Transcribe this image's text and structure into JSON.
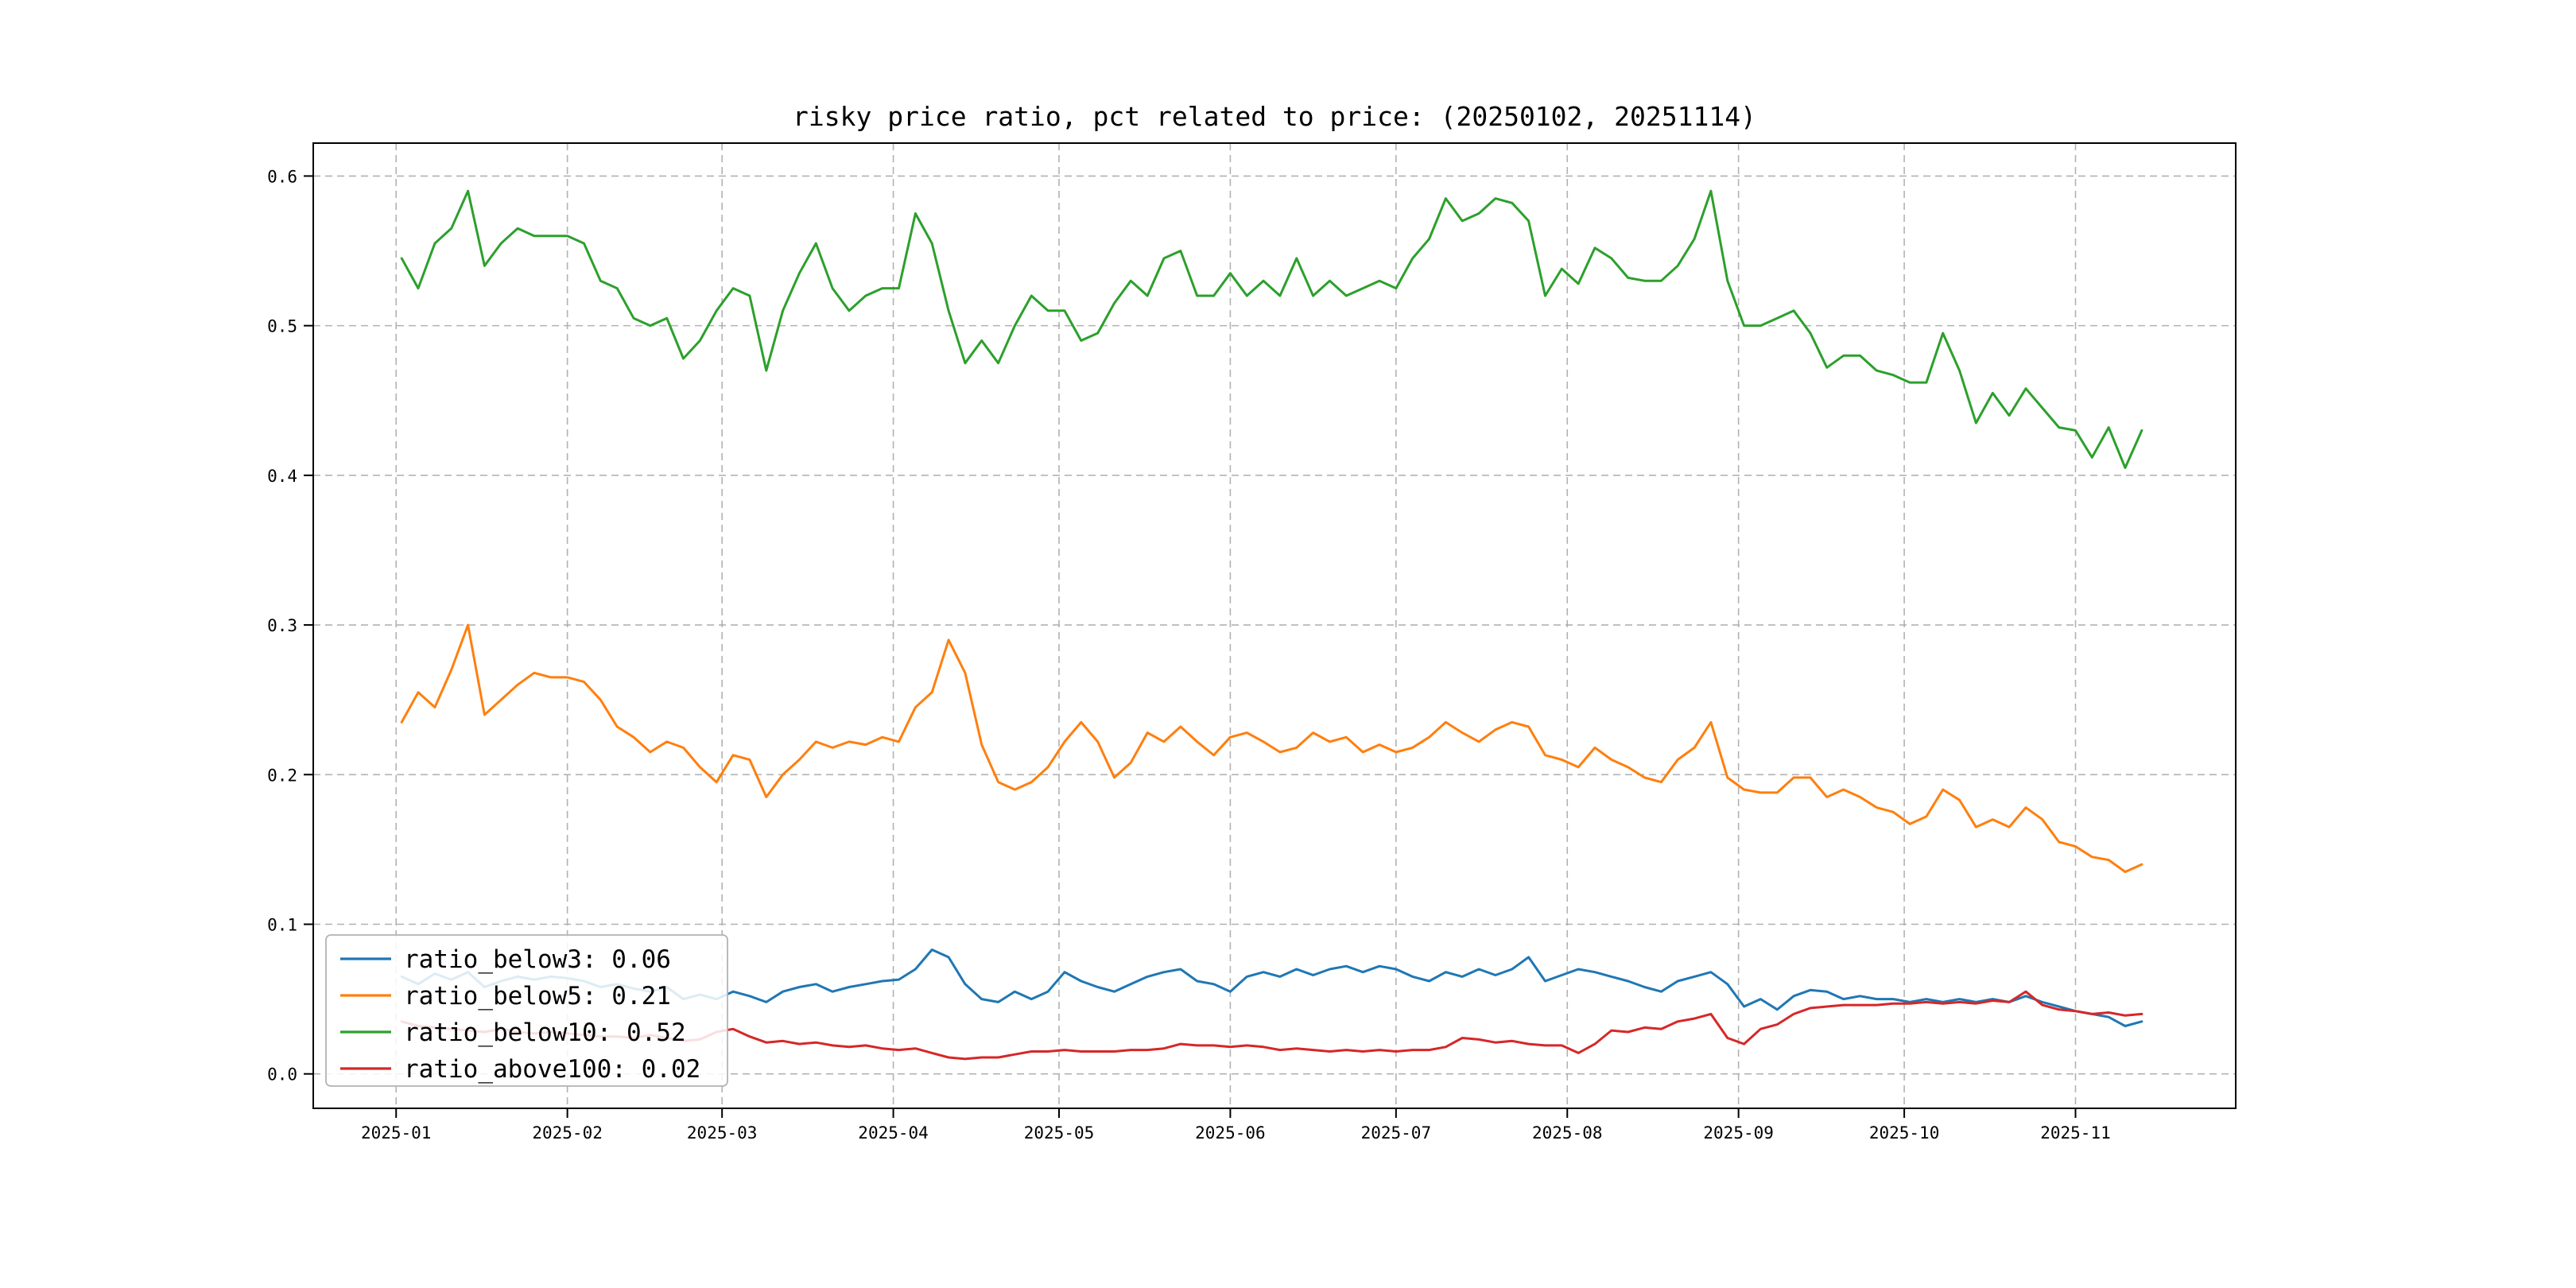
{
  "figure": {
    "background": "#ffffff",
    "axis_color": "#000000",
    "grid_color": "#aaaaaa"
  },
  "chart_data": {
    "type": "line",
    "title": "risky price ratio, pct related to price: (20250102, 20251114)",
    "date_range": [
      "20250102",
      "20251114"
    ],
    "grid": true,
    "legend_position": "lower left",
    "x_axis": {
      "tick_labels": [
        "2025-01",
        "2025-02",
        "2025-03",
        "2025-04",
        "2025-05",
        "2025-06",
        "2025-07",
        "2025-08",
        "2025-09",
        "2025-10",
        "2025-11"
      ],
      "tick_day_offsets": [
        -1,
        30,
        58,
        89,
        119,
        150,
        180,
        211,
        242,
        272,
        303
      ],
      "xlim_days": [
        -16,
        332
      ]
    },
    "y_axis": {
      "tick_labels": [
        "0.0",
        "0.1",
        "0.2",
        "0.3",
        "0.4",
        "0.5",
        "0.6"
      ],
      "ticks": [
        0.0,
        0.1,
        0.2,
        0.3,
        0.4,
        0.5,
        0.6
      ],
      "ylim": [
        -0.023,
        0.622
      ]
    },
    "x_day_offsets": [
      0,
      3,
      6,
      9,
      12,
      15,
      18,
      21,
      24,
      27,
      30,
      33,
      36,
      39,
      42,
      45,
      48,
      51,
      54,
      57,
      60,
      63,
      66,
      69,
      72,
      75,
      78,
      81,
      84,
      87,
      90,
      93,
      96,
      99,
      102,
      105,
      108,
      111,
      114,
      117,
      120,
      123,
      126,
      129,
      132,
      135,
      138,
      141,
      144,
      147,
      150,
      153,
      156,
      159,
      162,
      165,
      168,
      171,
      174,
      177,
      180,
      183,
      186,
      189,
      192,
      195,
      198,
      201,
      204,
      207,
      210,
      213,
      216,
      219,
      222,
      225,
      228,
      231,
      234,
      237,
      240,
      243,
      246,
      249,
      252,
      255,
      258,
      261,
      264,
      267,
      270,
      273,
      276,
      279,
      282,
      285,
      288,
      291,
      294,
      297,
      300,
      303,
      306,
      309,
      312,
      315
    ],
    "series": [
      {
        "name": "ratio_below3",
        "label": "ratio_below3: 0.06",
        "color": "#1f77b4",
        "values": [
          0.065,
          0.06,
          0.067,
          0.063,
          0.068,
          0.058,
          0.062,
          0.065,
          0.063,
          0.065,
          0.064,
          0.062,
          0.058,
          0.06,
          0.057,
          0.055,
          0.058,
          0.05,
          0.053,
          0.05,
          0.055,
          0.052,
          0.048,
          0.055,
          0.058,
          0.06,
          0.055,
          0.058,
          0.06,
          0.062,
          0.063,
          0.07,
          0.083,
          0.078,
          0.06,
          0.05,
          0.048,
          0.055,
          0.05,
          0.055,
          0.068,
          0.062,
          0.058,
          0.055,
          0.06,
          0.065,
          0.068,
          0.07,
          0.062,
          0.06,
          0.055,
          0.065,
          0.068,
          0.065,
          0.07,
          0.066,
          0.07,
          0.072,
          0.068,
          0.072,
          0.07,
          0.065,
          0.062,
          0.068,
          0.065,
          0.07,
          0.066,
          0.07,
          0.078,
          0.062,
          0.066,
          0.07,
          0.068,
          0.065,
          0.062,
          0.058,
          0.055,
          0.062,
          0.065,
          0.068,
          0.06,
          0.045,
          0.05,
          0.043,
          0.052,
          0.056,
          0.055,
          0.05,
          0.052,
          0.05,
          0.05,
          0.048,
          0.05,
          0.048,
          0.05,
          0.048,
          0.05,
          0.048,
          0.052,
          0.048,
          0.045,
          0.042,
          0.04,
          0.038,
          0.032,
          0.035
        ]
      },
      {
        "name": "ratio_below5",
        "label": "ratio_below5: 0.21",
        "color": "#ff7f0e",
        "values": [
          0.235,
          0.255,
          0.245,
          0.27,
          0.3,
          0.24,
          0.25,
          0.26,
          0.268,
          0.265,
          0.265,
          0.262,
          0.25,
          0.232,
          0.225,
          0.215,
          0.222,
          0.218,
          0.205,
          0.195,
          0.213,
          0.21,
          0.185,
          0.2,
          0.21,
          0.222,
          0.218,
          0.222,
          0.22,
          0.225,
          0.222,
          0.245,
          0.255,
          0.29,
          0.268,
          0.22,
          0.195,
          0.19,
          0.195,
          0.205,
          0.222,
          0.235,
          0.222,
          0.198,
          0.208,
          0.228,
          0.222,
          0.232,
          0.222,
          0.213,
          0.225,
          0.228,
          0.222,
          0.215,
          0.218,
          0.228,
          0.222,
          0.225,
          0.215,
          0.22,
          0.215,
          0.218,
          0.225,
          0.235,
          0.228,
          0.222,
          0.23,
          0.235,
          0.232,
          0.213,
          0.21,
          0.205,
          0.218,
          0.21,
          0.205,
          0.198,
          0.195,
          0.21,
          0.218,
          0.235,
          0.198,
          0.19,
          0.188,
          0.188,
          0.198,
          0.198,
          0.185,
          0.19,
          0.185,
          0.178,
          0.175,
          0.167,
          0.172,
          0.19,
          0.183,
          0.165,
          0.17,
          0.165,
          0.178,
          0.17,
          0.155,
          0.152,
          0.145,
          0.143,
          0.135,
          0.14
        ]
      },
      {
        "name": "ratio_below10",
        "label": "ratio_below10: 0.52",
        "color": "#2ca02c",
        "values": [
          0.545,
          0.525,
          0.555,
          0.565,
          0.59,
          0.54,
          0.555,
          0.565,
          0.56,
          0.56,
          0.56,
          0.555,
          0.53,
          0.525,
          0.505,
          0.5,
          0.505,
          0.478,
          0.49,
          0.51,
          0.525,
          0.52,
          0.47,
          0.51,
          0.535,
          0.555,
          0.525,
          0.51,
          0.52,
          0.525,
          0.525,
          0.575,
          0.555,
          0.51,
          0.475,
          0.49,
          0.475,
          0.5,
          0.52,
          0.51,
          0.51,
          0.49,
          0.495,
          0.515,
          0.53,
          0.52,
          0.545,
          0.55,
          0.52,
          0.52,
          0.535,
          0.52,
          0.53,
          0.52,
          0.545,
          0.52,
          0.53,
          0.52,
          0.525,
          0.53,
          0.525,
          0.545,
          0.558,
          0.585,
          0.57,
          0.575,
          0.585,
          0.582,
          0.57,
          0.52,
          0.538,
          0.528,
          0.552,
          0.545,
          0.532,
          0.53,
          0.53,
          0.54,
          0.558,
          0.59,
          0.53,
          0.5,
          0.5,
          0.505,
          0.51,
          0.495,
          0.472,
          0.48,
          0.48,
          0.47,
          0.467,
          0.462,
          0.462,
          0.495,
          0.47,
          0.435,
          0.455,
          0.44,
          0.458,
          0.445,
          0.432,
          0.43,
          0.412,
          0.432,
          0.405,
          0.43
        ]
      },
      {
        "name": "ratio_above100",
        "label": "ratio_above100: 0.02",
        "color": "#d62728",
        "values": [
          0.035,
          0.032,
          0.031,
          0.03,
          0.029,
          0.028,
          0.03,
          0.028,
          0.027,
          0.028,
          0.027,
          0.026,
          0.025,
          0.025,
          0.024,
          0.026,
          0.024,
          0.022,
          0.023,
          0.028,
          0.03,
          0.025,
          0.021,
          0.022,
          0.02,
          0.021,
          0.019,
          0.018,
          0.019,
          0.017,
          0.016,
          0.017,
          0.014,
          0.011,
          0.01,
          0.011,
          0.011,
          0.013,
          0.015,
          0.015,
          0.016,
          0.015,
          0.015,
          0.015,
          0.016,
          0.016,
          0.017,
          0.02,
          0.019,
          0.019,
          0.018,
          0.019,
          0.018,
          0.016,
          0.017,
          0.016,
          0.015,
          0.016,
          0.015,
          0.016,
          0.015,
          0.016,
          0.016,
          0.018,
          0.024,
          0.023,
          0.021,
          0.022,
          0.02,
          0.019,
          0.019,
          0.014,
          0.02,
          0.029,
          0.028,
          0.031,
          0.03,
          0.035,
          0.037,
          0.04,
          0.024,
          0.02,
          0.03,
          0.033,
          0.04,
          0.044,
          0.045,
          0.046,
          0.046,
          0.046,
          0.047,
          0.047,
          0.048,
          0.047,
          0.048,
          0.047,
          0.049,
          0.048,
          0.055,
          0.046,
          0.043,
          0.042,
          0.04,
          0.041,
          0.039,
          0.04
        ]
      }
    ]
  }
}
